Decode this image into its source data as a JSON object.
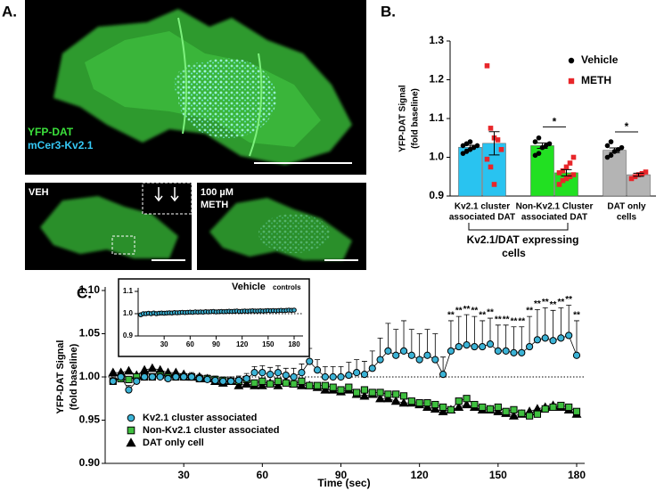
{
  "figure": {
    "panel_labels": [
      "A.",
      "B.",
      "C."
    ],
    "image_labels": {
      "main": [
        "YFP-DAT",
        "mCer3-Kv2.1"
      ],
      "left": "VEH",
      "right": [
        "100 µM",
        "METH"
      ]
    }
  },
  "chart_data": [
    {
      "type": "bar",
      "y_label": [
        "YFP-DAT Signal",
        "(fold baseline)"
      ],
      "categories": [
        [
          "Kv2.1   cluster",
          "associated  DAT"
        ],
        [
          "Non-Kv2.1  Cluster",
          "associated  DAT"
        ],
        [
          "DAT   only",
          "cells"
        ]
      ],
      "bar_colors": [
        "#29c3f0",
        "#22e022",
        "#b4b4b4"
      ],
      "series": [
        {
          "name": "Vehicle",
          "color": "#000000",
          "marker": "circle",
          "values": [
            1.026,
            1.03,
            1.018
          ],
          "errors": [
            0.005,
            0.007,
            0.006
          ],
          "points": [
            [
              1.01,
              1.015,
              1.02,
              1.025,
              1.03,
              1.03,
              1.035,
              1.04
            ],
            [
              1.005,
              1.01,
              1.025,
              1.03,
              1.035,
              1.04,
              1.05
            ],
            [
              1.0,
              1.005,
              1.015,
              1.02,
              1.025,
              1.03,
              1.04
            ]
          ]
        },
        {
          "name": "METH",
          "color": "#e8262a",
          "marker": "square",
          "values": [
            1.036,
            0.96,
            0.955
          ],
          "errors": [
            0.03,
            0.008,
            0.004
          ],
          "points": [
            [
              1.236,
              1.075,
              1.05,
              1.045,
              1.02,
              0.995,
              0.975,
              0.93
            ],
            [
              0.93,
              0.94,
              0.945,
              0.95,
              0.955,
              0.96,
              0.965,
              0.975,
              0.985,
              1.0
            ],
            [
              0.945,
              0.95,
              0.955,
              0.958,
              0.962
            ]
          ]
        }
      ],
      "significance": [
        "*",
        "*"
      ],
      "bracket_label": [
        "Kv2.1/DAT expressing",
        "cells"
      ],
      "ylim": [
        0.9,
        1.3
      ],
      "yticks": [
        0.9,
        {
          "value": 1.0,
          "label": "1.0"
        },
        1.1,
        1.2,
        1.3
      ],
      "legend": "upper right"
    },
    {
      "type": "line",
      "x_label": "Time (sec)",
      "y_label": [
        "YFP-DAT Signal",
        "(fold baseline)"
      ],
      "x": [
        3,
        6,
        9,
        12,
        15,
        18,
        21,
        24,
        27,
        30,
        33,
        36,
        39,
        42,
        45,
        48,
        51,
        54,
        57,
        60,
        63,
        66,
        69,
        72,
        75,
        78,
        81,
        84,
        87,
        90,
        93,
        96,
        99,
        102,
        105,
        108,
        111,
        114,
        117,
        120,
        123,
        126,
        129,
        132,
        135,
        138,
        141,
        144,
        147,
        150,
        153,
        156,
        159,
        162,
        165,
        168,
        171,
        174,
        177,
        180
      ],
      "series": [
        {
          "name": "Kv2.1 cluster associated",
          "color": "#3bb3d6",
          "marker": "circle",
          "values": [
            0.995,
            1.0,
            0.985,
            0.995,
            1.0,
            1.0,
            1.0,
            0.998,
            1.0,
            1.0,
            1.0,
            0.998,
            0.997,
            0.996,
            0.995,
            0.995,
            0.996,
            0.998,
            1.005,
            1.005,
            1.003,
            1.005,
            1.002,
            1.0,
            1.005,
            1.018,
            1.008,
            1.0,
            1.0,
            1.0,
            1.002,
            1.005,
            1.003,
            1.01,
            1.02,
            1.03,
            1.025,
            1.03,
            1.025,
            1.02,
            1.025,
            1.02,
            1.003,
            1.03,
            1.035,
            1.037,
            1.035,
            1.035,
            1.038,
            1.03,
            1.03,
            1.028,
            1.028,
            1.035,
            1.043,
            1.045,
            1.042,
            1.045,
            1.048,
            1.025
          ],
          "errors": [
            0.005,
            0.005,
            0.005,
            0.004,
            0.004,
            0.004,
            0.004,
            0.004,
            0.004,
            0.004,
            0.005,
            0.005,
            0.005,
            0.005,
            0.005,
            0.005,
            0.005,
            0.006,
            0.007,
            0.008,
            0.008,
            0.008,
            0.008,
            0.01,
            0.01,
            0.015,
            0.012,
            0.012,
            0.012,
            0.012,
            0.015,
            0.015,
            0.015,
            0.02,
            0.025,
            0.032,
            0.03,
            0.035,
            0.03,
            0.03,
            0.03,
            0.03,
            0.02,
            0.035,
            0.035,
            0.035,
            0.035,
            0.03,
            0.03,
            0.03,
            0.03,
            0.03,
            0.03,
            0.035,
            0.035,
            0.035,
            0.035,
            0.035,
            0.035,
            0.04
          ]
        },
        {
          "name": "Non-Kv2.1 cluster associated",
          "color": "#3fbf3f",
          "marker": "square",
          "values": [
            0.995,
            0.998,
            0.997,
            1.0,
            1.0,
            1.0,
            1.002,
            1.0,
            1.0,
            1.0,
            1.0,
            0.998,
            0.998,
            0.997,
            0.996,
            0.995,
            0.995,
            0.997,
            0.993,
            0.995,
            0.992,
            0.995,
            0.993,
            0.992,
            0.995,
            0.99,
            0.99,
            0.99,
            0.988,
            0.985,
            0.988,
            0.982,
            0.985,
            0.982,
            0.982,
            0.98,
            0.98,
            0.978,
            0.972,
            0.97,
            0.97,
            0.968,
            0.965,
            0.962,
            0.972,
            0.975,
            0.968,
            0.965,
            0.963,
            0.965,
            0.96,
            0.962,
            0.958,
            0.955,
            0.957,
            0.963,
            0.965,
            0.967,
            0.965,
            0.96
          ]
        },
        {
          "name": "DAT only cell",
          "color": "#000000",
          "marker": "triangle",
          "values": [
            1.005,
            1.005,
            1.007,
            1.002,
            1.008,
            1.01,
            1.008,
            1.005,
            1.005,
            1.003,
            1.0,
            1.0,
            0.998,
            0.995,
            0.993,
            0.995,
            0.99,
            0.992,
            0.99,
            0.99,
            0.993,
            0.99,
            0.995,
            0.992,
            0.99,
            0.99,
            0.988,
            0.985,
            0.985,
            0.983,
            0.985,
            0.98,
            0.978,
            0.98,
            0.975,
            0.975,
            0.972,
            0.97,
            0.97,
            0.968,
            0.965,
            0.963,
            0.96,
            0.962,
            0.965,
            0.968,
            0.965,
            0.962,
            0.962,
            0.96,
            0.958,
            0.955,
            0.957,
            0.96,
            0.963,
            0.965,
            0.967,
            0.965,
            0.962,
            0.957
          ]
        }
      ],
      "significance_x": [
        132,
        135,
        138,
        141,
        144,
        147,
        150,
        153,
        156,
        159,
        162,
        165,
        168,
        171,
        174,
        177,
        180
      ],
      "significance_labels": [
        "**",
        "**",
        "**",
        "**",
        "**",
        "**",
        "**",
        "**",
        "**",
        "**",
        "**",
        "**",
        "**",
        "**",
        "**",
        "**",
        "**"
      ],
      "reference_line": 1.0,
      "xlim": [
        0,
        180
      ],
      "xticks": [
        30,
        60,
        90,
        120,
        150,
        180
      ],
      "ylim": [
        0.9,
        1.1
      ],
      "yticks": [
        {
          "value": 0.9,
          "label": "0.90"
        },
        0.95,
        {
          "value": 1.0,
          "label": "1.00"
        },
        1.05,
        {
          "value": 1.1,
          "label": "1.10"
        }
      ],
      "legend": "lower left"
    },
    {
      "type": "line",
      "title": [
        "Vehicle",
        "controls"
      ],
      "x": [
        3,
        6,
        9,
        12,
        15,
        18,
        21,
        24,
        27,
        30,
        33,
        36,
        39,
        42,
        45,
        48,
        51,
        54,
        57,
        60,
        63,
        66,
        69,
        72,
        75,
        78,
        81,
        84,
        87,
        90,
        93,
        96,
        99,
        102,
        105,
        108,
        111,
        114,
        117,
        120,
        123,
        126,
        129,
        132,
        135,
        138,
        141,
        144,
        147,
        150,
        153,
        156,
        159,
        162,
        165,
        168,
        171,
        174,
        177,
        180
      ],
      "series": [
        {
          "color": "#3bb3d6",
          "marker": "circle",
          "values": [
            0.995,
            1.0,
            1.0,
            1.002,
            1.0,
            1.003,
            1.0,
            1.002,
            1.003,
            1.002,
            1.003,
            1.004,
            1.003,
            1.005,
            1.004,
            1.005,
            1.006,
            1.005,
            1.006,
            1.007,
            1.006,
            1.008,
            1.007,
            1.008,
            1.007,
            1.009,
            1.008,
            1.009,
            1.01,
            1.008,
            1.009,
            1.01,
            1.009,
            1.01,
            1.011,
            1.01,
            1.011,
            1.012,
            1.01,
            1.011,
            1.012,
            1.011,
            1.012,
            1.013,
            1.012,
            1.012,
            1.013,
            1.012,
            1.013,
            1.014,
            1.013,
            1.014,
            1.013,
            1.014,
            1.015,
            1.014,
            1.015,
            1.016,
            1.015,
            1.016
          ]
        }
      ],
      "reference_line": 1.0,
      "xlim": [
        0,
        180
      ],
      "xticks": [
        30,
        60,
        90,
        120,
        150,
        180
      ],
      "ylim": [
        0.9,
        1.1
      ],
      "yticks": [
        0.9,
        {
          "value": 1.0,
          "label": "1.0"
        },
        1.1
      ]
    }
  ]
}
